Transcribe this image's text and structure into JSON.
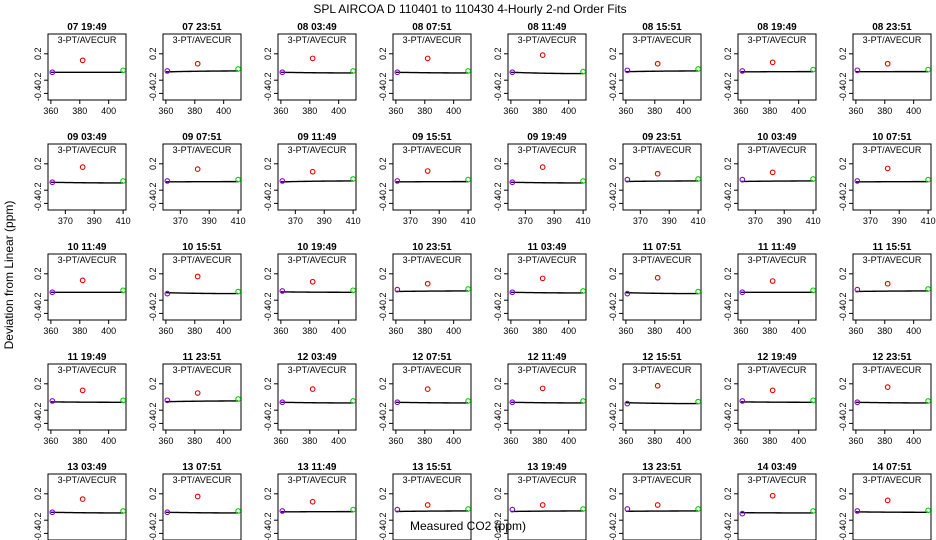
{
  "chart_data": {
    "type": "scatter",
    "title": "SPL   AIRCOA D   110401 to 110430   4-Hourly 2-nd Order Fits",
    "xlabel": "Measured CO2 (ppm)",
    "ylabel": "Deviation from Linear (ppm)",
    "panel_subtitle": "3-PT/AVECUR",
    "xlim": [
      358,
      412
    ],
    "ylim": [
      -0.5,
      0.5
    ],
    "xticks_default": [
      360,
      380,
      400
    ],
    "xticks_row2": [
      370,
      390,
      410
    ],
    "yticks": [
      -0.4,
      -0.2,
      0.2
    ],
    "point_colors": {
      "low": "#8800cc",
      "mid": "#e00000",
      "high": "#00cc00",
      "fit": "#000000"
    },
    "panels": [
      {
        "title": "07 19:49",
        "low": -0.08,
        "mid": 0.1,
        "high": -0.05
      },
      {
        "title": "07 23:51",
        "low": -0.06,
        "mid": 0.05,
        "high": -0.03
      },
      {
        "title": "08 03:49",
        "low": -0.08,
        "mid": 0.13,
        "high": -0.06
      },
      {
        "title": "08 07:51",
        "low": -0.08,
        "mid": 0.13,
        "high": -0.06
      },
      {
        "title": "08 11:49",
        "low": -0.08,
        "mid": 0.18,
        "high": -0.07
      },
      {
        "title": "08 15:51",
        "low": -0.05,
        "mid": 0.05,
        "high": -0.03
      },
      {
        "title": "08 19:49",
        "low": -0.06,
        "mid": 0.07,
        "high": -0.04
      },
      {
        "title": "08 23:51",
        "low": -0.05,
        "mid": 0.05,
        "high": -0.04
      },
      {
        "title": "09 03:49",
        "low": -0.08,
        "mid": 0.15,
        "high": -0.06
      },
      {
        "title": "09 07:51",
        "low": -0.06,
        "mid": 0.12,
        "high": -0.04
      },
      {
        "title": "09 11:49",
        "low": -0.06,
        "mid": 0.08,
        "high": -0.03
      },
      {
        "title": "09 15:51",
        "low": -0.06,
        "mid": 0.09,
        "high": -0.04
      },
      {
        "title": "09 19:49",
        "low": -0.08,
        "mid": 0.15,
        "high": -0.06
      },
      {
        "title": "09 23:51",
        "low": -0.04,
        "mid": 0.05,
        "high": -0.03
      },
      {
        "title": "10 03:49",
        "low": -0.04,
        "mid": 0.07,
        "high": -0.03
      },
      {
        "title": "10 07:51",
        "low": -0.06,
        "mid": 0.13,
        "high": -0.04
      },
      {
        "title": "10 11:49",
        "low": -0.08,
        "mid": 0.1,
        "high": -0.05
      },
      {
        "title": "10 15:51",
        "low": -0.1,
        "mid": 0.16,
        "high": -0.07
      },
      {
        "title": "10 19:49",
        "low": -0.06,
        "mid": 0.08,
        "high": -0.05
      },
      {
        "title": "10 23:51",
        "low": -0.04,
        "mid": 0.05,
        "high": -0.03
      },
      {
        "title": "11 03:49",
        "low": -0.08,
        "mid": 0.13,
        "high": -0.06
      },
      {
        "title": "11 07:51",
        "low": -0.1,
        "mid": 0.14,
        "high": -0.07
      },
      {
        "title": "11 11:49",
        "low": -0.08,
        "mid": 0.09,
        "high": -0.05
      },
      {
        "title": "11 15:51",
        "low": -0.04,
        "mid": 0.05,
        "high": -0.03
      },
      {
        "title": "11 19:49",
        "low": -0.06,
        "mid": 0.1,
        "high": -0.05
      },
      {
        "title": "11 23:51",
        "low": -0.05,
        "mid": 0.06,
        "high": -0.03
      },
      {
        "title": "12 03:49",
        "low": -0.08,
        "mid": 0.12,
        "high": -0.06
      },
      {
        "title": "12 07:51",
        "low": -0.08,
        "mid": 0.12,
        "high": -0.06
      },
      {
        "title": "12 11:49",
        "low": -0.08,
        "mid": 0.13,
        "high": -0.06
      },
      {
        "title": "12 15:51",
        "low": -0.1,
        "mid": 0.17,
        "high": -0.07
      },
      {
        "title": "12 19:49",
        "low": -0.06,
        "mid": 0.1,
        "high": -0.05
      },
      {
        "title": "12 23:51",
        "low": -0.08,
        "mid": 0.15,
        "high": -0.06
      },
      {
        "title": "13 03:49",
        "low": -0.08,
        "mid": 0.12,
        "high": -0.06
      },
      {
        "title": "13 07:51",
        "low": -0.08,
        "mid": 0.16,
        "high": -0.06
      },
      {
        "title": "13 11:49",
        "low": -0.06,
        "mid": 0.08,
        "high": -0.04
      },
      {
        "title": "13 15:51",
        "low": -0.04,
        "mid": 0.03,
        "high": -0.03
      },
      {
        "title": "13 19:49",
        "low": -0.04,
        "mid": 0.03,
        "high": -0.03
      },
      {
        "title": "13 23:51",
        "low": -0.03,
        "mid": 0.03,
        "high": -0.03
      },
      {
        "title": "14 03:49",
        "low": -0.1,
        "mid": 0.17,
        "high": -0.06
      },
      {
        "title": "14 07:51",
        "low": -0.06,
        "mid": 0.1,
        "high": -0.05
      }
    ]
  }
}
